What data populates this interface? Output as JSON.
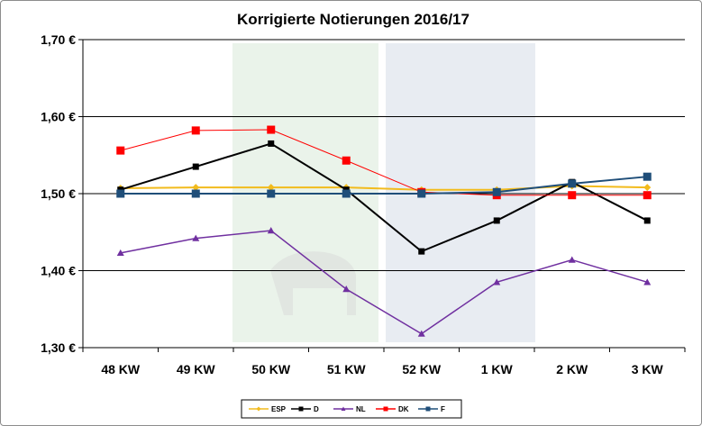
{
  "chart_data": {
    "type": "line",
    "title": "Korrigierte Notierungen 2016/17",
    "xlabel": "",
    "ylabel": "",
    "categories": [
      "48 KW",
      "49 KW",
      "50 KW",
      "51 KW",
      "52 KW",
      "1 KW",
      "2 KW",
      "3 KW"
    ],
    "ylim": [
      1.3,
      1.7
    ],
    "yticks": [
      "1,30 €",
      "1,40 €",
      "1,50 €",
      "1,60 €",
      "1,70 €"
    ],
    "ytick_values": [
      1.3,
      1.4,
      1.5,
      1.6,
      1.7
    ],
    "grid": true,
    "legend_position": "bottom",
    "series": [
      {
        "name": "ESP",
        "color": "#f2bb1d",
        "marker": "diamond",
        "values": [
          1.507,
          1.508,
          1.508,
          1.508,
          1.505,
          1.505,
          1.51,
          1.508
        ]
      },
      {
        "name": "D",
        "color": "#000000",
        "marker": "square",
        "values": [
          1.505,
          1.535,
          1.565,
          1.505,
          1.425,
          1.465,
          1.515,
          1.465
        ]
      },
      {
        "name": "NL",
        "color": "#7030a0",
        "marker": "triangle",
        "values": [
          1.423,
          1.442,
          1.452,
          1.376,
          1.318,
          1.385,
          1.414,
          1.385
        ]
      },
      {
        "name": "DK",
        "color": "#ff0000",
        "marker": "square",
        "values": [
          1.556,
          1.582,
          1.583,
          1.543,
          1.502,
          1.498,
          1.498,
          1.498
        ]
      },
      {
        "name": "F",
        "color": "#1f4e79",
        "marker": "square",
        "values": [
          1.5,
          1.5,
          1.5,
          1.5,
          1.5,
          1.502,
          1.513,
          1.522
        ]
      }
    ]
  }
}
